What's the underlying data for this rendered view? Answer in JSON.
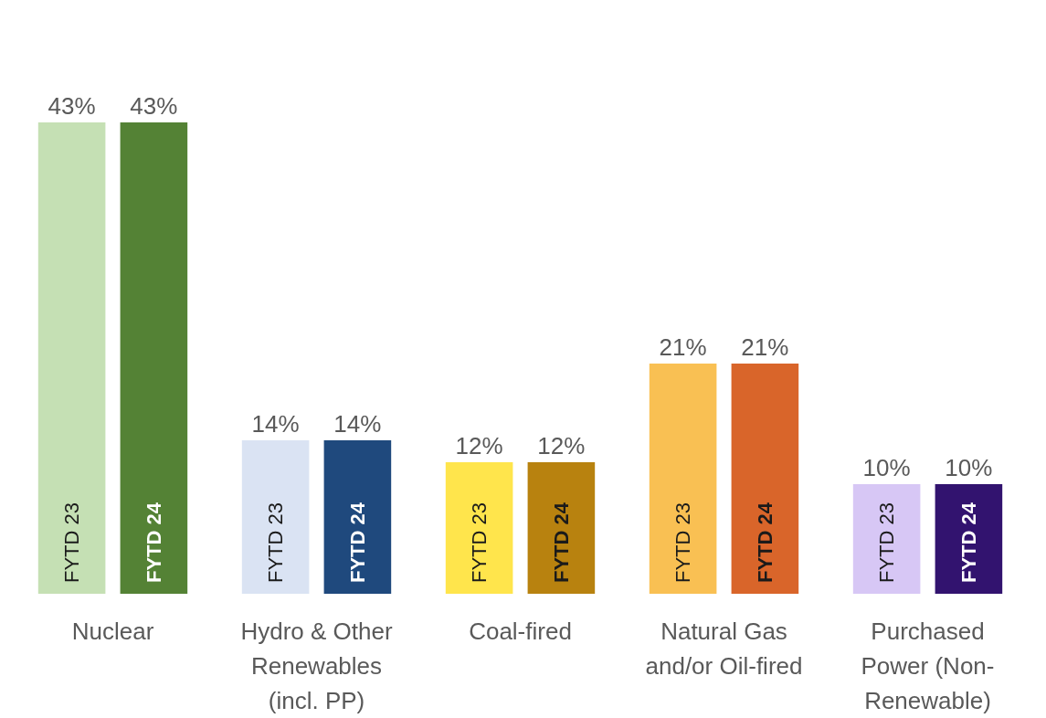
{
  "chart_data": {
    "type": "bar",
    "categories": [
      "Nuclear",
      "Hydro & Other\nRenewables\n(incl. PP)",
      "Coal-fired",
      "Natural Gas\nand/or Oil-fired",
      "Purchased\nPower (Non-\nRenewable)"
    ],
    "series": [
      {
        "name": "FYTD 23",
        "colors": [
          "#c5e0b4",
          "#dae3f3",
          "#ffe54c",
          "#f9c053",
          "#d7c7f5"
        ],
        "values": [
          43,
          14,
          12,
          21,
          10
        ],
        "value_labels": [
          "43%",
          "14%",
          "12%",
          "21%",
          "10%"
        ]
      },
      {
        "name": "FYTD 24",
        "colors": [
          "#548235",
          "#1f497d",
          "#b8820f",
          "#d9652a",
          "#32136f"
        ],
        "values": [
          43,
          14,
          12,
          21,
          10
        ],
        "value_labels": [
          "43%",
          "14%",
          "12%",
          "21%",
          "10%"
        ]
      }
    ],
    "legend": false
  }
}
